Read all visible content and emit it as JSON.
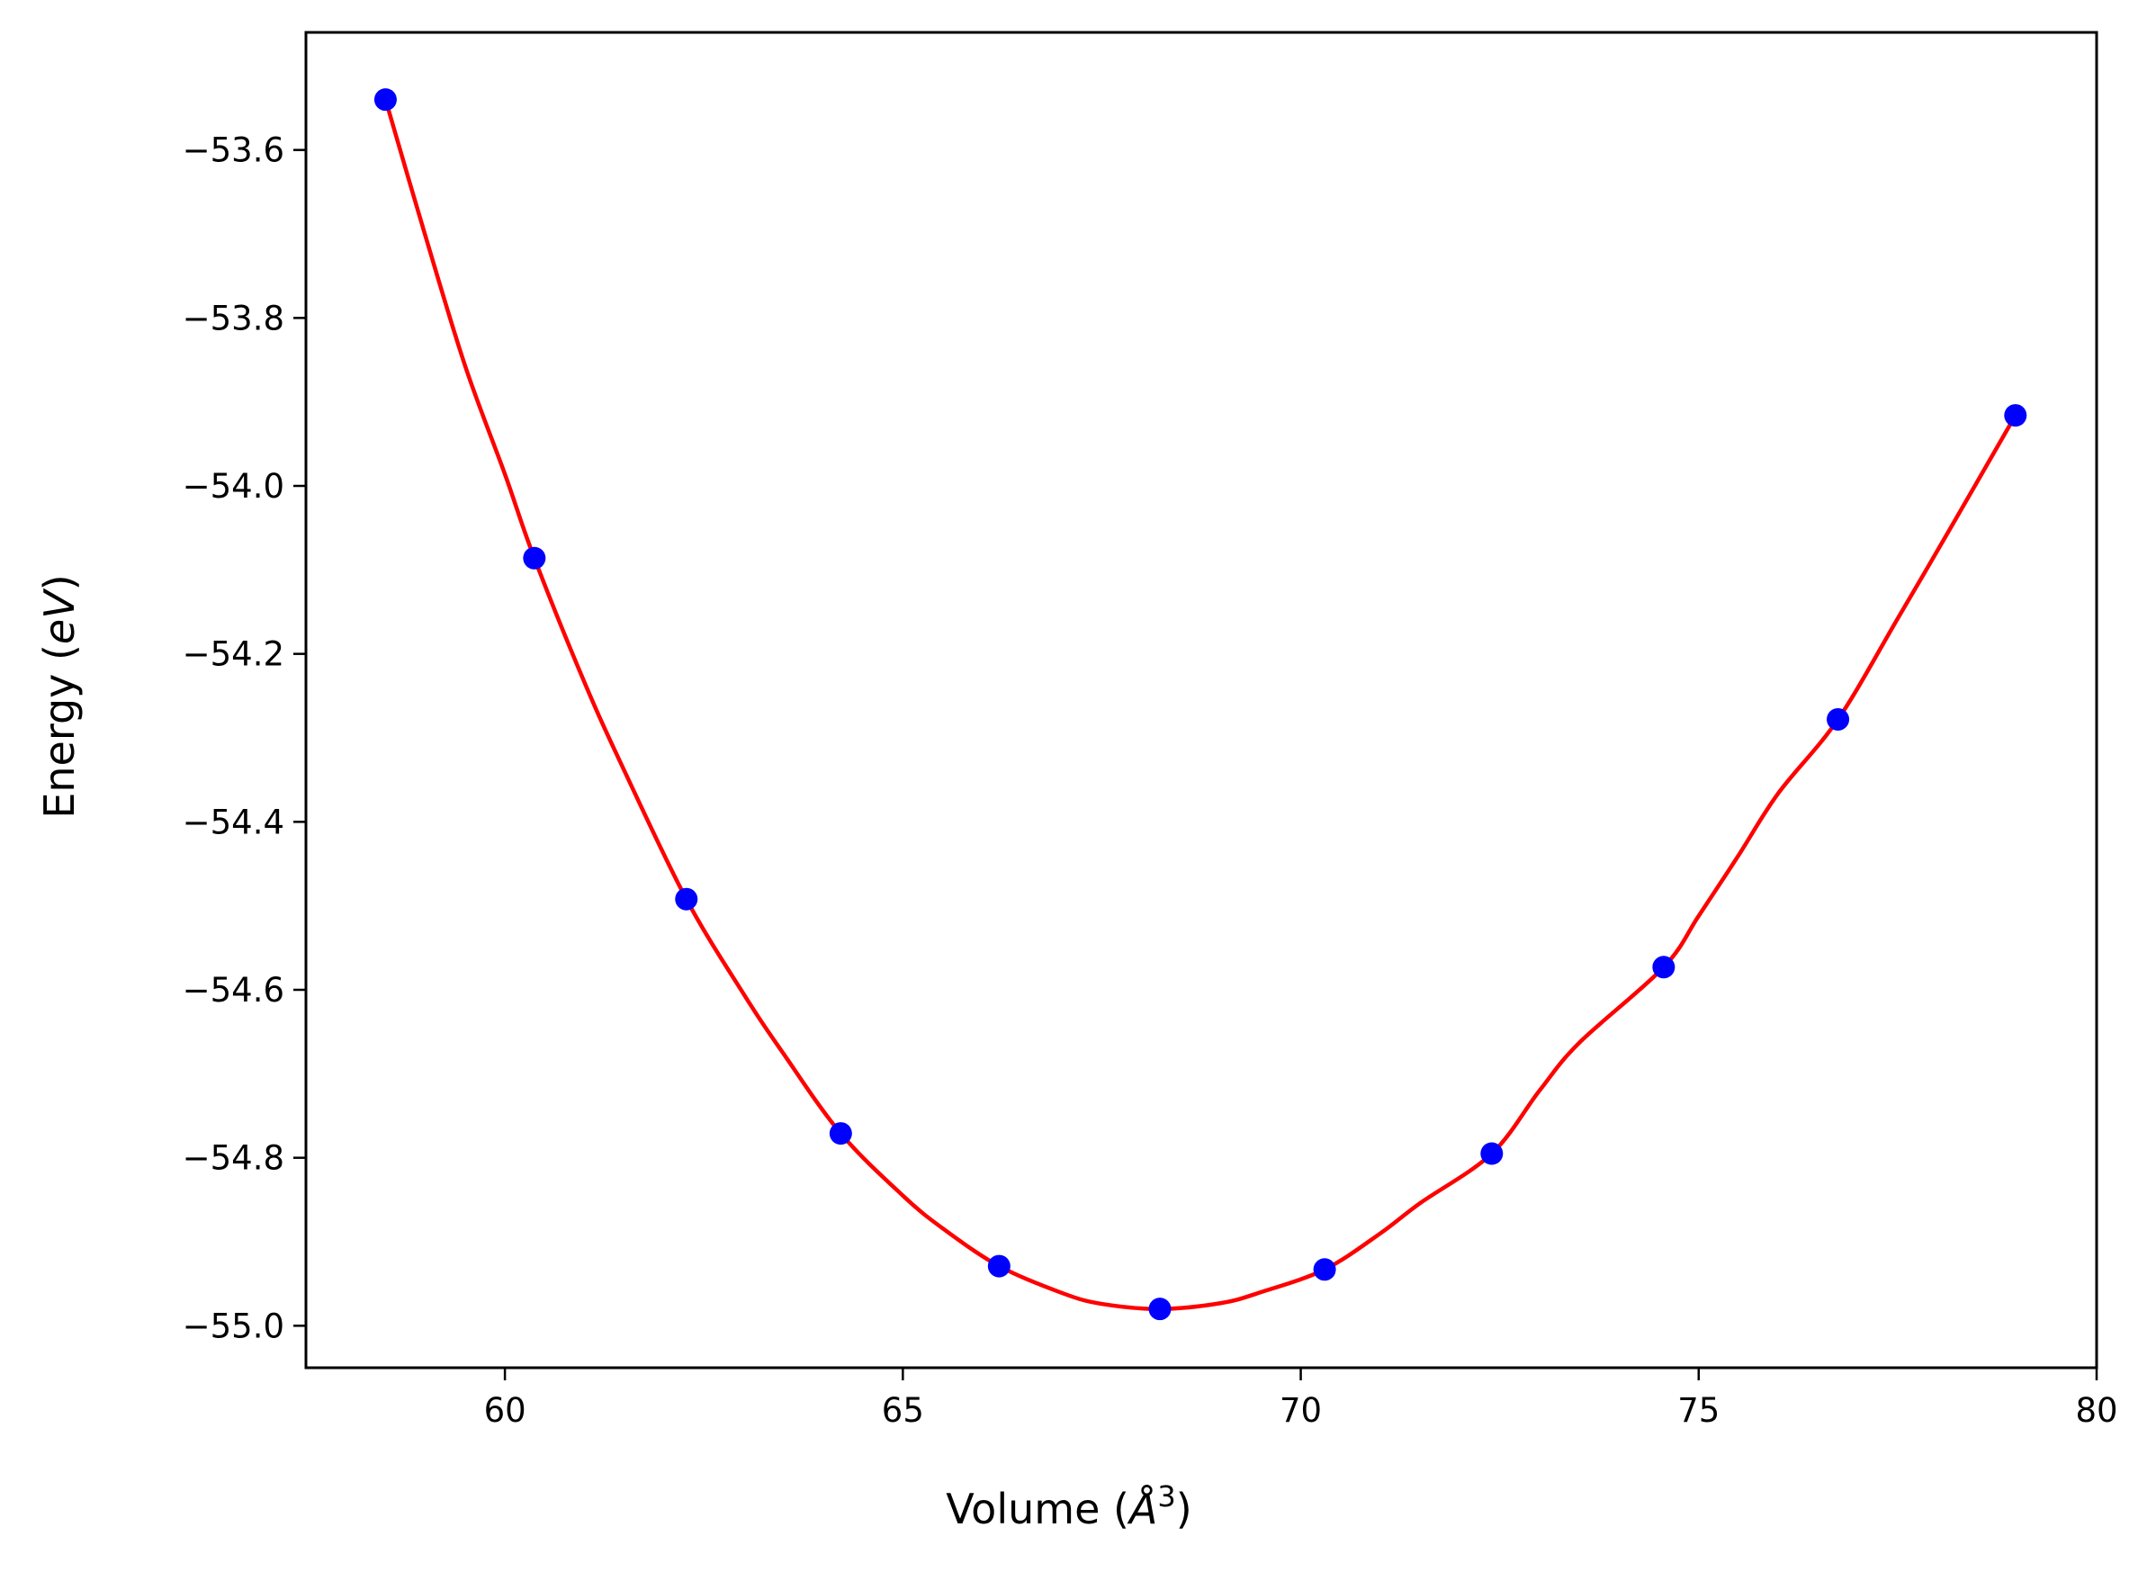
{
  "chart_data": {
    "type": "scatter",
    "xlabel": "Volume (",
    "xlabel_unit": "Å",
    "xlabel_exp": "3",
    "xlabel_close": ")",
    "ylabel": "Energy (",
    "ylabel_unit": "eV",
    "ylabel_close": ")",
    "xlim": [
      57.5,
      80
    ],
    "ylim": [
      -55.05,
      -53.46
    ],
    "x_ticks": [
      60,
      65,
      70,
      75,
      80
    ],
    "y_ticks": [
      -53.6,
      -53.8,
      -54.0,
      -54.2,
      -54.4,
      -54.6,
      -54.8,
      -55.0
    ],
    "x_tick_labels": [
      "60",
      "65",
      "70",
      "75",
      "80"
    ],
    "y_tick_labels": [
      "−53.6",
      "−53.8",
      "−54.0",
      "−54.2",
      "−54.4",
      "−54.6",
      "−54.8",
      "−55.0"
    ],
    "grid": false,
    "series": [
      {
        "type": "scatter",
        "color": "#0000ff",
        "x": [
          58.5,
          60.37,
          62.28,
          64.22,
          66.21,
          68.23,
          70.3,
          72.4,
          74.56,
          76.75,
          78.98
        ],
        "y": [
          -53.54,
          -54.086,
          -54.492,
          -54.771,
          -54.929,
          -54.98,
          -54.933,
          -54.795,
          -54.573,
          -54.278,
          -53.916
        ]
      },
      {
        "type": "line",
        "color": "#ff0000",
        "x": [
          58.5,
          59.0,
          59.5,
          60.0,
          60.37,
          61.0,
          61.5,
          62.28,
          63.0,
          63.5,
          64.22,
          65.0,
          65.5,
          66.21,
          67.0,
          67.5,
          68.23,
          69.0,
          69.5,
          70.3,
          71.0,
          71.5,
          72.4,
          73.0,
          73.5,
          74.56,
          75.0,
          75.5,
          76.0,
          76.75,
          77.5,
          78.0,
          78.5,
          78.98
        ],
        "y": [
          -53.54,
          -53.702,
          -53.857,
          -53.986,
          -54.086,
          -54.234,
          -54.339,
          -54.492,
          -54.605,
          -54.676,
          -54.771,
          -54.845,
          -54.884,
          -54.929,
          -54.961,
          -54.974,
          -54.98,
          -54.973,
          -54.96,
          -54.933,
          -54.89,
          -54.854,
          -54.795,
          -54.72,
          -54.663,
          -54.573,
          -54.512,
          -54.44,
          -54.366,
          -54.278,
          -54.158,
          -54.077,
          -53.995,
          -53.916
        ]
      }
    ]
  }
}
